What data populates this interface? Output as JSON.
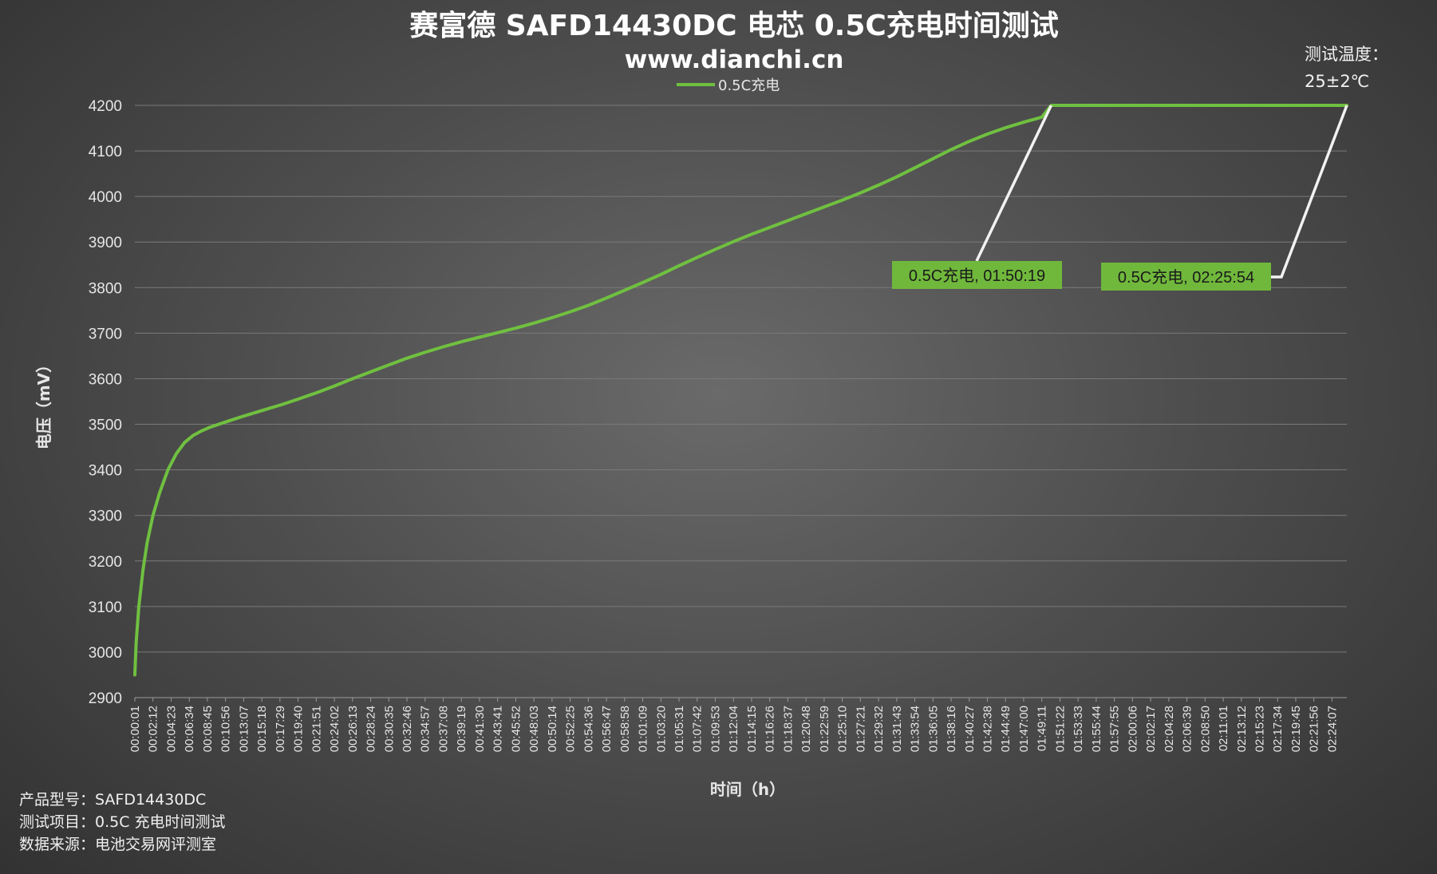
{
  "footer": {
    "model": "产品型号：SAFD14430DC",
    "item": "测试项目：0.5C 充电时间测试",
    "source": "数据来源：电池交易网评测室"
  },
  "temperature_note": {
    "line1": "测试温度：",
    "line2": "25±2℃"
  },
  "colors": {
    "line": "#70c040",
    "callout_fill": "#70b83c",
    "grid": "#7a7a7a",
    "leader": "#f2f2f2"
  },
  "chart_data": {
    "type": "line",
    "title": "赛富德 SAFD14430DC 电芯 0.5C充电时间测试",
    "subtitle": "www.dianchi.cn",
    "xlabel": "时间（h）",
    "ylabel": "电压（mV）",
    "ylim": [
      2900,
      4200
    ],
    "yticks": [
      2900,
      3000,
      3100,
      3200,
      3300,
      3400,
      3500,
      3600,
      3700,
      3800,
      3900,
      4000,
      4100,
      4200
    ],
    "grid": true,
    "legend_position": "top-center",
    "x_tick_labels": [
      "00:00:01",
      "00:02:12",
      "00:04:23",
      "00:06:34",
      "00:08:45",
      "00:10:56",
      "00:13:07",
      "00:15:18",
      "00:17:29",
      "00:19:40",
      "00:21:51",
      "00:24:02",
      "00:26:13",
      "00:28:24",
      "00:30:35",
      "00:32:46",
      "00:34:57",
      "00:37:08",
      "00:39:19",
      "00:41:30",
      "00:43:41",
      "00:45:52",
      "00:48:03",
      "00:50:14",
      "00:52:25",
      "00:54:36",
      "00:56:47",
      "00:58:58",
      "01:01:09",
      "01:03:20",
      "01:05:31",
      "01:07:42",
      "01:09:53",
      "01:12:04",
      "01:14:15",
      "01:16:26",
      "01:18:37",
      "01:20:48",
      "01:22:59",
      "01:25:10",
      "01:27:21",
      "01:29:32",
      "01:31:43",
      "01:33:54",
      "01:36:05",
      "01:38:16",
      "01:40:27",
      "01:42:38",
      "01:44:49",
      "01:47:00",
      "01:49:11",
      "01:51:22",
      "01:53:33",
      "01:55:44",
      "01:57:55",
      "02:00:06",
      "02:02:17",
      "02:04:28",
      "02:06:39",
      "02:08:50",
      "02:11:01",
      "02:13:12",
      "02:15:23",
      "02:17:34",
      "02:19:45",
      "02:21:56",
      "02:24:07"
    ],
    "x_min_seconds": 1,
    "x_max_seconds": 8754,
    "series": [
      {
        "name": "0.5C充电",
        "points": [
          [
            "00:00:01",
            2950
          ],
          [
            "00:00:10",
            3020
          ],
          [
            "00:00:30",
            3100
          ],
          [
            "00:01:00",
            3180
          ],
          [
            "00:01:30",
            3240
          ],
          [
            "00:02:12",
            3300
          ],
          [
            "00:03:00",
            3350
          ],
          [
            "00:04:00",
            3400
          ],
          [
            "00:05:00",
            3435
          ],
          [
            "00:06:00",
            3460
          ],
          [
            "00:07:00",
            3475
          ],
          [
            "00:08:00",
            3485
          ],
          [
            "00:09:00",
            3493
          ],
          [
            "00:10:56",
            3505
          ],
          [
            "00:13:07",
            3518
          ],
          [
            "00:15:18",
            3530
          ],
          [
            "00:17:29",
            3542
          ],
          [
            "00:19:40",
            3555
          ],
          [
            "00:21:51",
            3569
          ],
          [
            "00:24:02",
            3584
          ],
          [
            "00:26:13",
            3600
          ],
          [
            "00:28:24",
            3615
          ],
          [
            "00:30:35",
            3630
          ],
          [
            "00:32:46",
            3645
          ],
          [
            "00:34:57",
            3658
          ],
          [
            "00:37:08",
            3670
          ],
          [
            "00:39:19",
            3681
          ],
          [
            "00:41:30",
            3691
          ],
          [
            "00:43:41",
            3701
          ],
          [
            "00:45:52",
            3711
          ],
          [
            "00:48:03",
            3722
          ],
          [
            "00:50:14",
            3734
          ],
          [
            "00:52:25",
            3747
          ],
          [
            "00:54:36",
            3761
          ],
          [
            "00:56:47",
            3777
          ],
          [
            "00:58:58",
            3794
          ],
          [
            "01:01:09",
            3811
          ],
          [
            "01:03:20",
            3829
          ],
          [
            "01:05:31",
            3848
          ],
          [
            "01:07:42",
            3866
          ],
          [
            "01:09:53",
            3884
          ],
          [
            "01:12:04",
            3901
          ],
          [
            "01:14:15",
            3917
          ],
          [
            "01:16:26",
            3932
          ],
          [
            "01:18:37",
            3947
          ],
          [
            "01:20:48",
            3962
          ],
          [
            "01:22:59",
            3977
          ],
          [
            "01:25:10",
            3992
          ],
          [
            "01:27:21",
            4008
          ],
          [
            "01:29:32",
            4025
          ],
          [
            "01:31:43",
            4043
          ],
          [
            "01:33:54",
            4063
          ],
          [
            "01:36:05",
            4083
          ],
          [
            "01:38:16",
            4103
          ],
          [
            "01:40:27",
            4121
          ],
          [
            "01:42:38",
            4137
          ],
          [
            "01:44:49",
            4151
          ],
          [
            "01:47:00",
            4163
          ],
          [
            "01:49:11",
            4174
          ],
          [
            "01:50:19",
            4200
          ],
          [
            "02:25:54",
            4200
          ]
        ]
      }
    ],
    "annotations": [
      {
        "label": "0.5C充电, 01:50:19",
        "x": "01:50:19",
        "y": 4200
      },
      {
        "label": "0.5C充电, 02:25:54",
        "x": "02:25:54",
        "y": 4200
      }
    ]
  }
}
